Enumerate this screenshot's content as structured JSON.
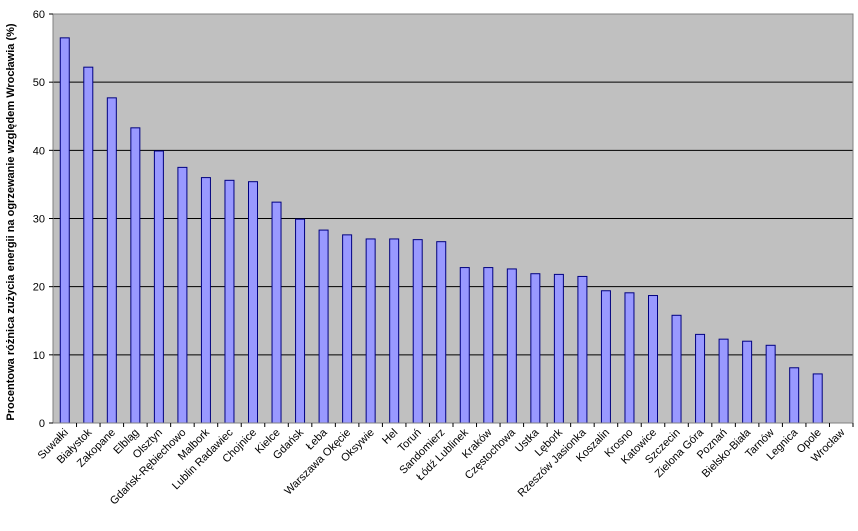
{
  "chart_data": {
    "type": "bar",
    "title": "",
    "xlabel": "",
    "ylabel": "Procentowa różnica zużycia energii na ogrzewanie względem Wrocławia (%)",
    "ylim": [
      0,
      60
    ],
    "yticks": [
      0,
      10,
      20,
      30,
      40,
      50,
      60
    ],
    "grid": true,
    "legend": "none",
    "colors": {
      "plot_bg": "#c0c0c0",
      "bar_fill": "#9999ff",
      "bar_stroke": "#000080",
      "grid": "#000000"
    },
    "categories": [
      "Suwałki",
      "Białystok",
      "Zakopane",
      "Elbląg",
      "Olsztyn",
      "Gdańsk-Rębiechowo",
      "Malbork",
      "Lublin Radawiec",
      "Chojnice",
      "Kielce",
      "Gdańsk",
      "Łeba",
      "Warszawa Okęcie",
      "Oksywie",
      "Hel",
      "Toruń",
      "Sandomierz",
      "Łódź Lublinek",
      "Kraków",
      "Częstochowa",
      "Ustka",
      "Lębork",
      "Rzeszów Jasionka",
      "Koszalin",
      "Krosno",
      "Katowice",
      "Szczecin",
      "Zielona Góra",
      "Poznań",
      "Bielsko-Biała",
      "Tarnów",
      "Legnica",
      "Opole",
      "Wrocław"
    ],
    "values": [
      56.5,
      52.2,
      47.7,
      43.3,
      39.9,
      37.5,
      36.0,
      35.6,
      35.4,
      32.4,
      29.9,
      28.3,
      27.6,
      27.0,
      27.0,
      26.9,
      26.6,
      22.8,
      22.8,
      22.6,
      21.9,
      21.8,
      21.5,
      19.4,
      19.1,
      18.7,
      15.8,
      13.0,
      12.3,
      12.0,
      11.4,
      8.1,
      7.2,
      0
    ]
  }
}
